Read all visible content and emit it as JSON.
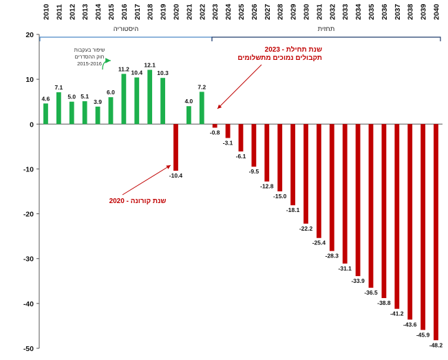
{
  "chart_data": {
    "type": "bar",
    "categories": [
      "2010",
      "2011",
      "2012",
      "2013",
      "2014",
      "2015",
      "2016",
      "2017",
      "2018",
      "2019",
      "2020",
      "2021",
      "2022",
      "2023",
      "2024",
      "2025",
      "2026",
      "2027",
      "2028",
      "2029",
      "2030",
      "2031",
      "2032",
      "2033",
      "2034",
      "2035",
      "2036",
      "2037",
      "2038",
      "2039",
      "2040"
    ],
    "values": [
      4.6,
      7.1,
      5.0,
      5.1,
      3.9,
      6.0,
      11.2,
      10.4,
      12.1,
      10.3,
      -10.4,
      4.0,
      7.2,
      -0.8,
      -3.1,
      -6.1,
      -9.5,
      -12.8,
      -15.0,
      -18.1,
      -22.2,
      -25.4,
      -28.3,
      -31.1,
      -33.9,
      -36.5,
      -38.8,
      -41.2,
      -43.6,
      -45.9,
      -48.2
    ],
    "data_labels": [
      "4.6",
      "7.1",
      "5.0",
      "5.1",
      "3.9",
      "6.0",
      "11.2",
      "10.4",
      "12.1",
      "10.3",
      "-10.4",
      "4.0",
      "7.2",
      "-0.8",
      "-3.1",
      "-6.1",
      "-9.5",
      "-12.8",
      "-15.0",
      "-18.1",
      "-22.2",
      "-25.4",
      "-28.3",
      "-31.1",
      "-33.9",
      "-36.5",
      "-38.8",
      "-41.2",
      "-43.6",
      "-45.9",
      "-48.2"
    ],
    "ylim": [
      -50,
      20
    ],
    "yticks": [
      "20",
      "10",
      "0",
      "-10",
      "-20",
      "-30",
      "-40",
      "-50"
    ],
    "title": "",
    "xlabel": "",
    "ylabel": "",
    "colors": {
      "positive": "#1cb04c",
      "negative": "#c00000",
      "bracket": "#4a86c5",
      "green_arrow": "#1cb04c"
    },
    "periods": {
      "history": "היסטוריה",
      "forecast": "תחזית"
    },
    "annotations": {
      "covid": "2020 - שנת קורונה",
      "start_line1": "2023 - שנת תחילת",
      "start_line2": "תקבולים נמוכים מתשלומים",
      "reform_line1": "שיפור בעקבות",
      "reform_line2": "חוק ההסדרים",
      "reform_line3": "2015-2016"
    }
  }
}
